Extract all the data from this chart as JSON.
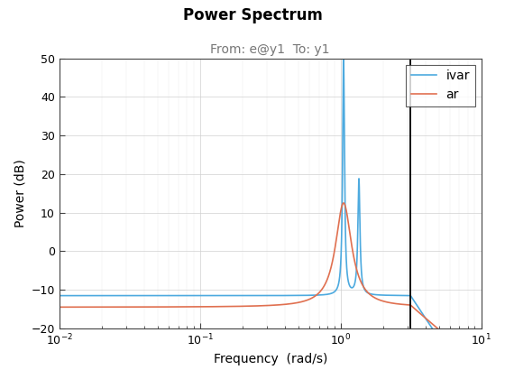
{
  "title": "Power Spectrum",
  "subtitle": "From: e@y1  To: y1",
  "xlabel": "Frequency  (rad/s)",
  "ylabel": "Power (dB)",
  "xlim": [
    0.01,
    10
  ],
  "ylim": [
    -20,
    50
  ],
  "vline_x": 3.14,
  "legend_labels": [
    "ivar",
    "ar"
  ],
  "ivar_color": "#4DAADF",
  "ar_color": "#E07050",
  "vline_color": "#000000",
  "background_color": "#ffffff",
  "title_fontsize": 12,
  "subtitle_fontsize": 10,
  "label_fontsize": 10,
  "legend_fontsize": 10,
  "res_freq1": 1.05,
  "res_freq2": 1.35,
  "ivar_flat": -11.5,
  "ar_flat": -14.5
}
